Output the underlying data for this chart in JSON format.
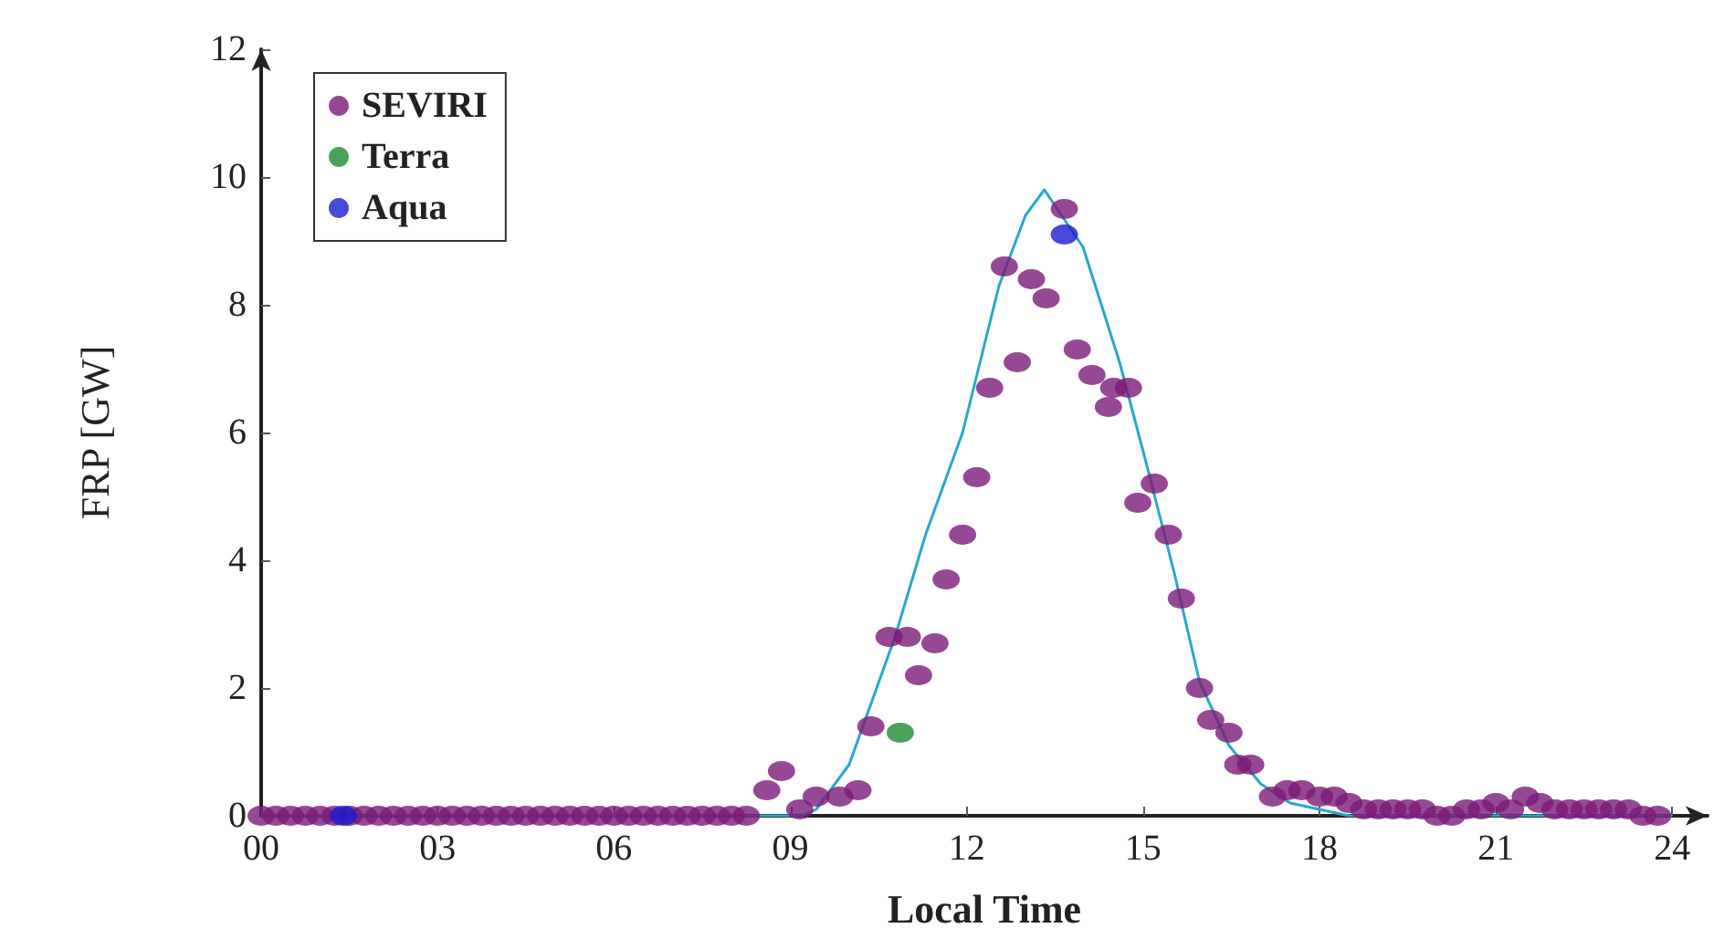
{
  "chart_data": {
    "type": "scatter",
    "xlabel": "Local Time",
    "ylabel": "FRP [GW]",
    "xlim": [
      0,
      24.6
    ],
    "ylim": [
      0,
      12
    ],
    "xticks": [
      {
        "value": 0,
        "label": "00"
      },
      {
        "value": 3,
        "label": "03"
      },
      {
        "value": 6,
        "label": "06"
      },
      {
        "value": 9,
        "label": "09"
      },
      {
        "value": 12,
        "label": "12"
      },
      {
        "value": 15,
        "label": "15"
      },
      {
        "value": 18,
        "label": "18"
      },
      {
        "value": 21,
        "label": "21"
      },
      {
        "value": 24,
        "label": "24"
      }
    ],
    "yticks": [
      0,
      2,
      4,
      6,
      8,
      10,
      12
    ],
    "grid": false,
    "legend": "top left",
    "marker": "circle",
    "series": [
      {
        "name": "SEVIRI",
        "color": "#7a1a78",
        "x": [
          0,
          0.25,
          0.5,
          0.75,
          1,
          1.25,
          1.5,
          1.75,
          2,
          2.25,
          2.5,
          2.75,
          3,
          3.25,
          3.5,
          3.75,
          4,
          4.25,
          4.5,
          4.75,
          5,
          5.25,
          5.5,
          5.75,
          6,
          6.25,
          6.5,
          6.75,
          7,
          7.25,
          7.5,
          7.75,
          8,
          8.25,
          8.6,
          8.85,
          9.16,
          9.44,
          9.84,
          10.15,
          10.37,
          10.68,
          10.99,
          11.18,
          11.46,
          11.65,
          11.93,
          12.17,
          12.39,
          12.64,
          12.86,
          13.1,
          13.35,
          13.66,
          13.88,
          14.13,
          14.41,
          14.5,
          14.75,
          14.91,
          15.19,
          15.43,
          15.65,
          15.96,
          16.15,
          16.46,
          16.61,
          16.83,
          17.2,
          17.45,
          17.7,
          18,
          18.25,
          18.5,
          18.75,
          19,
          19.25,
          19.5,
          19.75,
          20,
          20.25,
          20.5,
          20.75,
          21,
          21.25,
          21.5,
          21.75,
          22,
          22.25,
          22.5,
          22.75,
          23,
          23.25,
          23.5,
          23.75
        ],
        "values": [
          0,
          0,
          0,
          0,
          0,
          0,
          0,
          0,
          0,
          0,
          0,
          0,
          0,
          0,
          0,
          0,
          0,
          0,
          0,
          0,
          0,
          0,
          0,
          0,
          0,
          0,
          0,
          0,
          0,
          0,
          0,
          0,
          0,
          0,
          0.4,
          0.7,
          0.1,
          0.3,
          0.3,
          0.4,
          1.4,
          2.8,
          2.8,
          2.2,
          2.7,
          3.7,
          4.4,
          5.3,
          6.7,
          8.6,
          7.1,
          8.4,
          8.1,
          9.5,
          7.3,
          6.9,
          6.4,
          6.7,
          6.7,
          4.9,
          5.2,
          4.4,
          3.4,
          2.0,
          1.5,
          1.3,
          0.8,
          0.8,
          0.3,
          0.4,
          0.4,
          0.3,
          0.3,
          0.2,
          0.1,
          0.1,
          0.1,
          0.1,
          0.1,
          0,
          0,
          0.1,
          0.1,
          0.2,
          0.1,
          0.3,
          0.2,
          0.1,
          0.1,
          0.1,
          0.1,
          0.1,
          0.1,
          0,
          0
        ]
      },
      {
        "name": "Terra",
        "color": "#1e8a2e",
        "x": [
          10.87
        ],
        "values": [
          1.3
        ]
      },
      {
        "name": "Aqua",
        "color": "#1a1ad0",
        "x": [
          1.4,
          13.66
        ],
        "values": [
          0,
          9.1
        ]
      },
      {
        "type": "line",
        "color": "#2aa8c8",
        "marker": "none",
        "x": [
          0,
          9.2,
          9.44,
          10.0,
          10.78,
          11.3,
          11.93,
          12.55,
          13.0,
          13.32,
          13.98,
          14.6,
          15.06,
          15.53,
          15.96,
          16.46,
          17.0,
          17.5,
          18.5,
          24
        ],
        "values": [
          0,
          0,
          0.1,
          0.8,
          2.8,
          4.4,
          6.0,
          8.3,
          9.4,
          9.8,
          8.9,
          7.1,
          5.5,
          3.8,
          2.1,
          1.1,
          0.5,
          0.2,
          0,
          0
        ]
      }
    ]
  }
}
